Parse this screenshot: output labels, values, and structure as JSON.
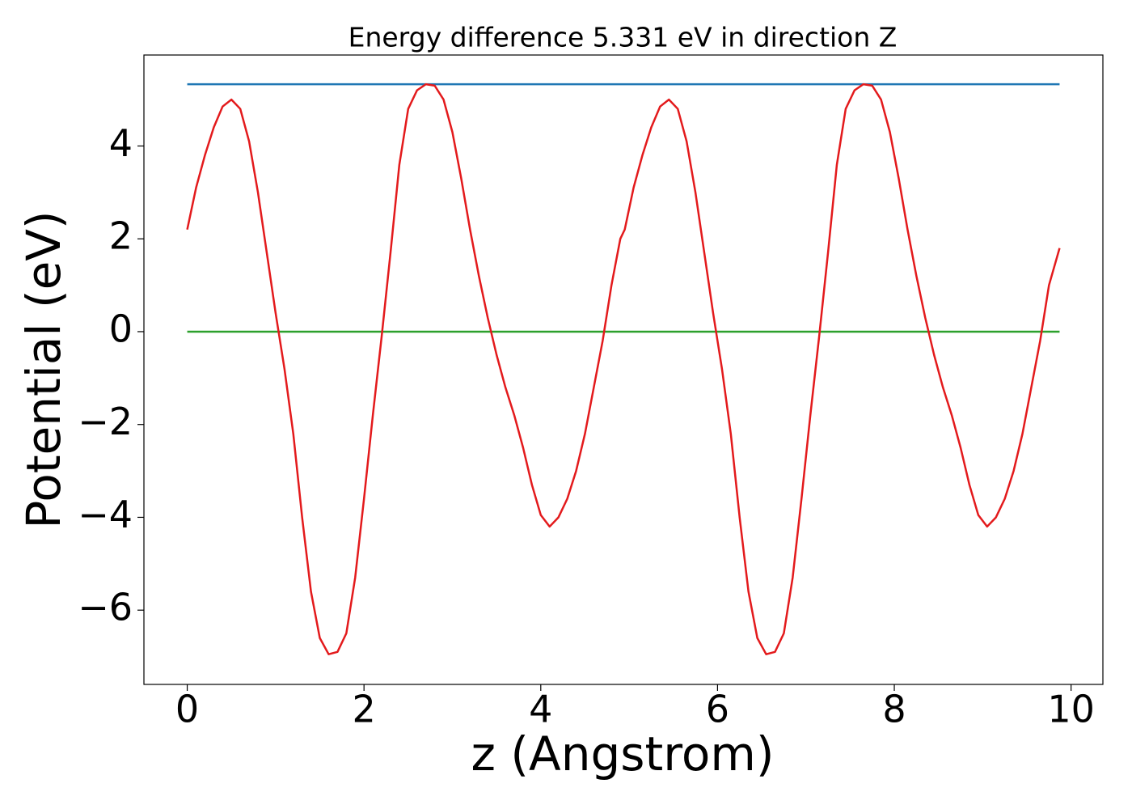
{
  "chart_data": {
    "type": "line",
    "title": "Energy difference 5.331 eV in direction Z",
    "x_label": "z (Angstrom)",
    "y_label": "Potential (eV)",
    "xlim": [
      -0.49,
      10.36
    ],
    "ylim": [
      -7.6,
      5.96
    ],
    "xticks": [
      0,
      2,
      4,
      6,
      8,
      10
    ],
    "yticks": [
      {
        "value": -6,
        "label": "−6"
      },
      {
        "value": -4,
        "label": "−4"
      },
      {
        "value": -2,
        "label": "−2"
      },
      0,
      2,
      4
    ],
    "grid": false,
    "series": [
      {
        "color": "#1f77b4",
        "x": [
          0,
          9.87
        ],
        "values": [
          5.331,
          5.331
        ]
      },
      {
        "color": "#2ca02c",
        "x": [
          0,
          9.87
        ],
        "values": [
          0,
          0
        ]
      },
      {
        "color": "#e31a1c",
        "x": [
          0,
          0.1,
          0.2,
          0.3,
          0.4,
          0.5,
          0.6,
          0.7,
          0.8,
          0.9,
          1.0,
          1.1,
          1.2,
          1.3,
          1.4,
          1.5,
          1.6,
          1.7,
          1.8,
          1.9,
          2.0,
          2.1,
          2.2,
          2.3,
          2.4,
          2.5,
          2.6,
          2.7,
          2.8,
          2.9,
          3.0,
          3.1,
          3.2,
          3.3,
          3.4,
          3.5,
          3.6,
          3.7,
          3.8,
          3.9,
          4.0,
          4.1,
          4.2,
          4.3,
          4.4,
          4.5,
          4.6,
          4.7,
          4.8,
          4.9,
          4.95,
          5.05,
          5.15,
          5.25,
          5.35,
          5.45,
          5.55,
          5.65,
          5.75,
          5.85,
          5.95,
          6.05,
          6.15,
          6.25,
          6.35,
          6.45,
          6.55,
          6.65,
          6.75,
          6.85,
          6.95,
          7.05,
          7.15,
          7.25,
          7.35,
          7.45,
          7.55,
          7.65,
          7.75,
          7.85,
          7.95,
          8.05,
          8.15,
          8.25,
          8.35,
          8.45,
          8.55,
          8.65,
          8.75,
          8.85,
          8.95,
          9.05,
          9.15,
          9.25,
          9.35,
          9.45,
          9.55,
          9.65,
          9.75,
          9.87
        ],
        "values": [
          2.2,
          3.1,
          3.8,
          4.4,
          4.85,
          5.0,
          4.8,
          4.1,
          3.0,
          1.7,
          0.4,
          -0.8,
          -2.2,
          -4.0,
          -5.6,
          -6.6,
          -6.95,
          -6.9,
          -6.5,
          -5.3,
          -3.6,
          -1.8,
          -0.1,
          1.7,
          3.6,
          4.8,
          5.2,
          5.33,
          5.3,
          5.0,
          4.3,
          3.3,
          2.2,
          1.2,
          0.3,
          -0.5,
          -1.2,
          -1.8,
          -2.5,
          -3.3,
          -3.95,
          -4.2,
          -4.0,
          -3.6,
          -3.0,
          -2.2,
          -1.2,
          -0.2,
          1.0,
          2.0,
          2.2,
          3.1,
          3.8,
          4.4,
          4.85,
          5.0,
          4.8,
          4.1,
          3.0,
          1.7,
          0.4,
          -0.8,
          -2.2,
          -4.0,
          -5.6,
          -6.6,
          -6.95,
          -6.9,
          -6.5,
          -5.3,
          -3.6,
          -1.8,
          -0.1,
          1.7,
          3.6,
          4.8,
          5.2,
          5.33,
          5.3,
          5.0,
          4.3,
          3.3,
          2.2,
          1.2,
          0.3,
          -0.5,
          -1.2,
          -1.8,
          -2.5,
          -3.3,
          -3.95,
          -4.2,
          -4.0,
          -3.6,
          -3.0,
          -2.2,
          -1.2,
          -0.2,
          1.0,
          1.8
        ]
      }
    ]
  }
}
